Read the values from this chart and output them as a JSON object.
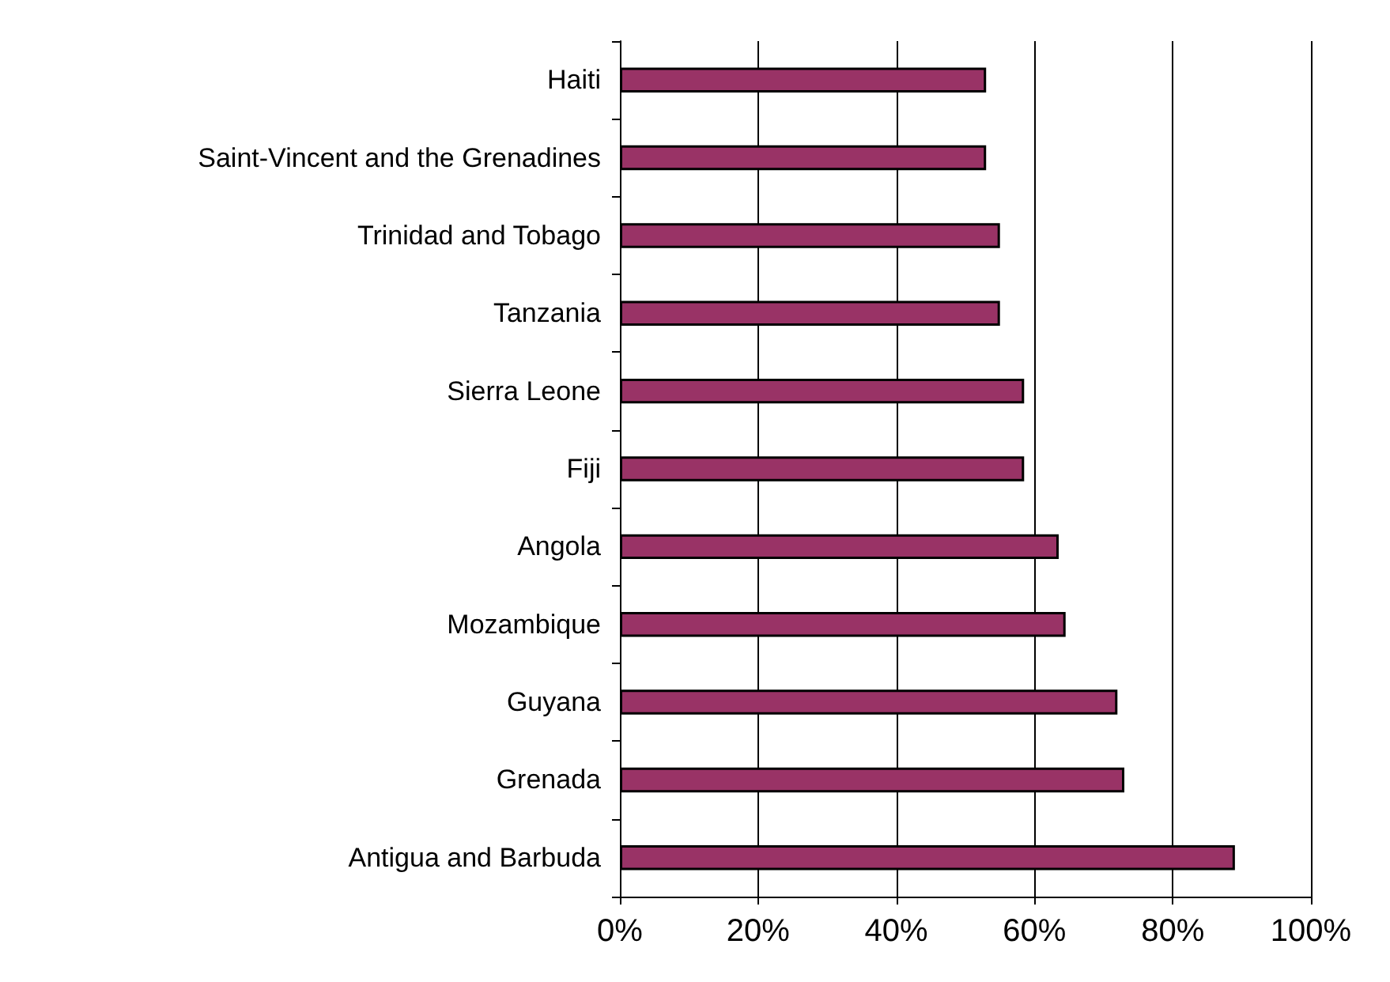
{
  "chart_data": {
    "type": "bar",
    "orientation": "horizontal",
    "categories": [
      "Haiti",
      "Saint-Vincent and the Grenadines",
      "Trinidad and Tobago",
      "Tanzania",
      "Sierra Leone",
      "Fiji",
      "Angola",
      "Mozambique",
      "Guyana",
      "Grenada",
      "Antigua and Barbuda"
    ],
    "values": [
      53,
      53,
      55,
      55,
      58.5,
      58.5,
      63.5,
      64.5,
      72,
      73,
      89
    ],
    "color": "#993366",
    "xlim": [
      0,
      100
    ],
    "xticks": [
      {
        "value": 0,
        "label": "0%"
      },
      {
        "value": 20,
        "label": "20%"
      },
      {
        "value": 40,
        "label": "40%"
      },
      {
        "value": 60,
        "label": "60%"
      },
      {
        "value": 80,
        "label": "80%"
      },
      {
        "value": 100,
        "label": "100%"
      }
    ],
    "grid": "x"
  }
}
